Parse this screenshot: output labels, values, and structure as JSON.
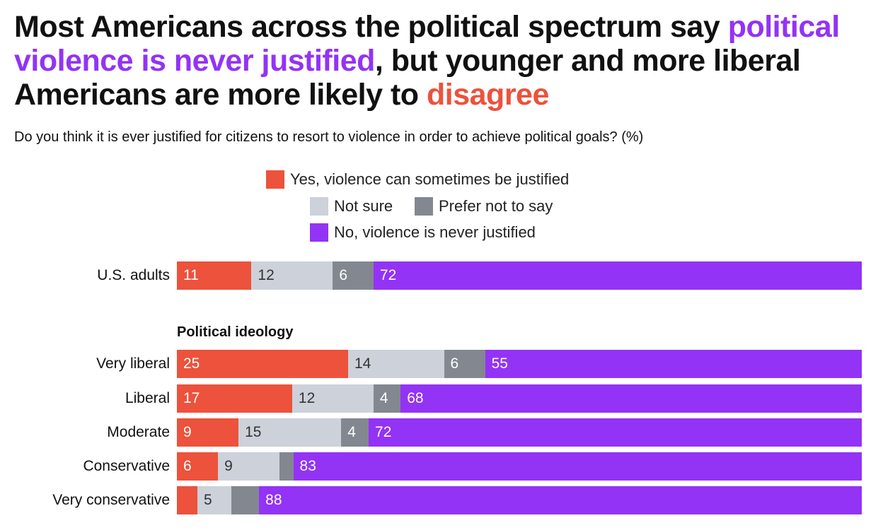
{
  "chart_data": {
    "type": "bar",
    "orientation": "horizontal-stacked",
    "title": {
      "part1": "Most Americans across the political spectrum say ",
      "highlight1": "political violence is never justified",
      "part2": ", but younger and more liberal Americans are more likely to ",
      "highlight2": "disagree"
    },
    "subtitle": "Do you think it is ever justified for citizens to resort to violence in order to achieve political goals? (%)",
    "series": [
      {
        "name": "Yes, violence can sometimes be justified",
        "color": "#EC523C",
        "text_color": "#ffffff"
      },
      {
        "name": "Not sure",
        "color": "#CDD1D9",
        "text_color": "#333333"
      },
      {
        "name": "Prefer not to say",
        "color": "#838790",
        "text_color": "#ffffff"
      },
      {
        "name": "No, violence is never justified",
        "color": "#9333F5",
        "text_color": "#ffffff"
      }
    ],
    "section_label": "Political ideology",
    "rows": [
      {
        "category": "U.S. adults",
        "values": [
          11,
          12,
          6,
          72
        ],
        "labels": [
          "11",
          "12",
          "6",
          "72"
        ]
      },
      {
        "category": "Very liberal",
        "values": [
          25,
          14,
          6,
          55
        ],
        "labels": [
          "25",
          "14",
          "6",
          "55"
        ]
      },
      {
        "category": "Liberal",
        "values": [
          17,
          12,
          4,
          68
        ],
        "labels": [
          "17",
          "12",
          "4",
          "68"
        ]
      },
      {
        "category": "Moderate",
        "values": [
          9,
          15,
          4,
          72
        ],
        "labels": [
          "9",
          "15",
          "4",
          "72"
        ]
      },
      {
        "category": "Conservative",
        "values": [
          6,
          9,
          2,
          83
        ],
        "labels": [
          "6",
          "9",
          "",
          "83"
        ]
      },
      {
        "category": "Very conservative",
        "values": [
          3,
          5,
          4,
          88
        ],
        "labels": [
          "",
          "5",
          "",
          "88"
        ]
      }
    ]
  }
}
